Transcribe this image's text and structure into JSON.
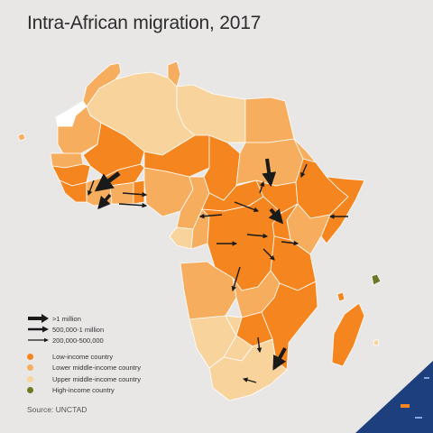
{
  "title": "Intra-African migration, 2017",
  "legend": {
    "arrows": [
      {
        "label": ">1 million"
      },
      {
        "label": "500,000-1 million"
      },
      {
        "label": "200,000-500,000"
      }
    ],
    "income_groups": [
      {
        "label": "Low-income country",
        "color": "#f5861f"
      },
      {
        "label": "Lower middle-income country",
        "color": "#f6ad5d"
      },
      {
        "label": "Upper middle-income country",
        "color": "#f8d39c"
      },
      {
        "label": "High-income country",
        "color": "#6e7a23"
      }
    ]
  },
  "source": "Source: UNCTAD",
  "colors": {
    "background": "#e9e6e6",
    "low_income": "#f5861f",
    "lower_middle_income": "#f6ad5d",
    "upper_middle_income": "#f8d39c",
    "high_income": "#6e7a23",
    "no_data": "#ffffff",
    "arrow": "#1a1a1a",
    "corner_accent": "#1e3f7d"
  }
}
